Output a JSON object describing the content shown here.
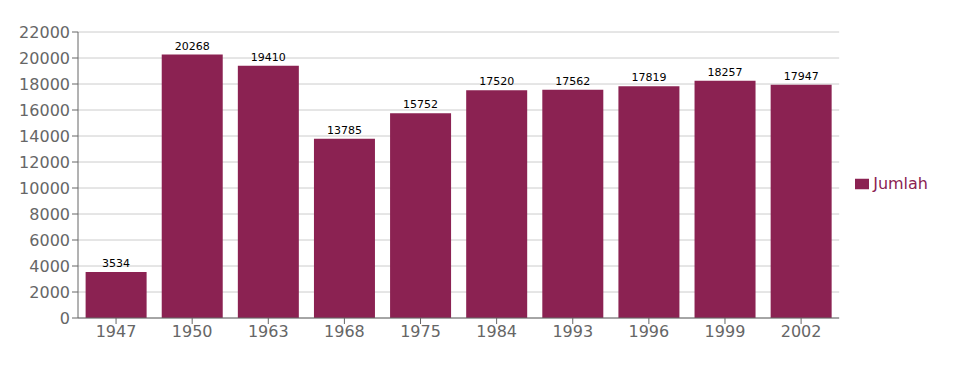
{
  "chart_data": {
    "type": "bar",
    "categories": [
      "1947",
      "1950",
      "1963",
      "1968",
      "1975",
      "1984",
      "1993",
      "1996",
      "1999",
      "2002"
    ],
    "series": [
      {
        "name": "Jumlah",
        "color": "#8B2252",
        "values": [
          3534,
          20268,
          19410,
          13785,
          15752,
          17520,
          17562,
          17819,
          18257,
          17947
        ]
      }
    ],
    "ylim": [
      0,
      22000
    ],
    "yticks": [
      0,
      2000,
      4000,
      6000,
      8000,
      10000,
      12000,
      14000,
      16000,
      18000,
      20000,
      22000
    ],
    "grid": true,
    "legend": "right",
    "data_labels": true
  }
}
